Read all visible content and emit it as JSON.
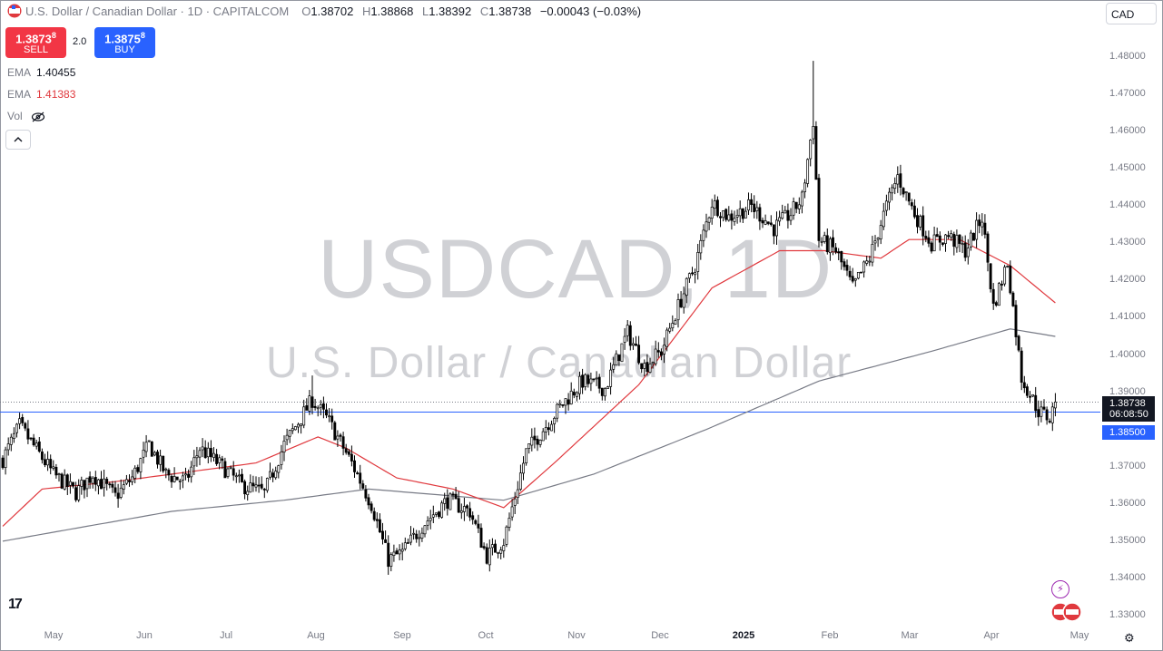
{
  "legend": {
    "title": "U.S. Dollar / Canadian Dollar · 1D · CAPITALCOM",
    "o_label": "O",
    "o_value": "1.38702",
    "h_label": "H",
    "h_value": "1.38868",
    "l_label": "L",
    "l_value": "1.38392",
    "c_label": "C",
    "c_value": "1.38738",
    "change": "−0.00043 (−0.03%)"
  },
  "trade": {
    "sell_price": "1.3873",
    "sell_price_sup": "8",
    "sell_label": "SELL",
    "spread": "2.0",
    "buy_price": "1.3875",
    "buy_price_sup": "8",
    "buy_label": "BUY"
  },
  "indicators": {
    "ema1_label": "EMA",
    "ema1_value": "1.40455",
    "ema1_color": "#787b86",
    "ema2_label": "EMA",
    "ema2_value": "1.41383",
    "ema2_color": "#e0393e",
    "vol_label": "Vol"
  },
  "currency": "CAD",
  "watermark": {
    "symbol": "USDCAD, 1D",
    "name": "U.S. Dollar / Canadian Dollar"
  },
  "price_labels": {
    "last_price": "1.38738",
    "countdown": "06:08:50",
    "last_color": "#131722",
    "line_price": "1.38500",
    "line_color": "#2962ff"
  },
  "icons": [
    "flag-icon",
    "hide-eye-icon",
    "chevron-up-icon",
    "tradingview-logo-icon",
    "lightning-icon",
    "currency-flags-icon",
    "gear-icon"
  ],
  "chart_data": {
    "type": "candlestick",
    "ylim": [
      1.325,
      1.485
    ],
    "y_ticks": [
      "1.48000",
      "1.47000",
      "1.46000",
      "1.45000",
      "1.44000",
      "1.43000",
      "1.42000",
      "1.41000",
      "1.40000",
      "1.39000",
      "1.37000",
      "1.36000",
      "1.35000",
      "1.34000",
      "1.33000"
    ],
    "x_ticks": [
      {
        "label": "May",
        "bold": false
      },
      {
        "label": "Jun",
        "bold": false
      },
      {
        "label": "Jul",
        "bold": false
      },
      {
        "label": "Aug",
        "bold": false
      },
      {
        "label": "Sep",
        "bold": false
      },
      {
        "label": "Oct",
        "bold": false
      },
      {
        "label": "Nov",
        "bold": false
      },
      {
        "label": "Dec",
        "bold": false
      },
      {
        "label": "2025",
        "bold": true
      },
      {
        "label": "Feb",
        "bold": false
      },
      {
        "label": "Mar",
        "bold": false
      },
      {
        "label": "Apr",
        "bold": false
      },
      {
        "label": "May",
        "bold": false
      }
    ],
    "close_anchors": [
      [
        0,
        1.372
      ],
      [
        6,
        1.381
      ],
      [
        18,
        1.368
      ],
      [
        26,
        1.363
      ],
      [
        32,
        1.368
      ],
      [
        40,
        1.362
      ],
      [
        46,
        1.367
      ],
      [
        52,
        1.376
      ],
      [
        58,
        1.368
      ],
      [
        65,
        1.366
      ],
      [
        70,
        1.375
      ],
      [
        78,
        1.37
      ],
      [
        85,
        1.365
      ],
      [
        93,
        1.363
      ],
      [
        100,
        1.376
      ],
      [
        110,
        1.388
      ],
      [
        116,
        1.382
      ],
      [
        124,
        1.371
      ],
      [
        131,
        1.36
      ],
      [
        137,
        1.345
      ],
      [
        142,
        1.347
      ],
      [
        150,
        1.355
      ],
      [
        158,
        1.361
      ],
      [
        166,
        1.358
      ],
      [
        172,
        1.346
      ],
      [
        178,
        1.35
      ],
      [
        186,
        1.374
      ],
      [
        192,
        1.38
      ],
      [
        198,
        1.386
      ],
      [
        206,
        1.393
      ],
      [
        214,
        1.391
      ],
      [
        222,
        1.406
      ],
      [
        228,
        1.397
      ],
      [
        234,
        1.401
      ],
      [
        240,
        1.413
      ],
      [
        246,
        1.424
      ],
      [
        252,
        1.441
      ],
      [
        258,
        1.437
      ],
      [
        266,
        1.44
      ],
      [
        274,
        1.434
      ],
      [
        280,
        1.438
      ],
      [
        284,
        1.442
      ],
      [
        288,
        1.463
      ],
      [
        290,
        1.431
      ],
      [
        296,
        1.428
      ],
      [
        302,
        1.418
      ],
      [
        308,
        1.426
      ],
      [
        314,
        1.44
      ],
      [
        318,
        1.448
      ],
      [
        324,
        1.438
      ],
      [
        330,
        1.43
      ],
      [
        336,
        1.432
      ],
      [
        342,
        1.428
      ],
      [
        348,
        1.437
      ],
      [
        352,
        1.413
      ],
      [
        357,
        1.425
      ],
      [
        362,
        1.394
      ],
      [
        368,
        1.385
      ],
      [
        372,
        1.383
      ],
      [
        374,
        1.387
      ]
    ],
    "ema_fast_anchors": [
      [
        0,
        1.354
      ],
      [
        14,
        1.364
      ],
      [
        40,
        1.366
      ],
      [
        70,
        1.369
      ],
      [
        90,
        1.371
      ],
      [
        112,
        1.378
      ],
      [
        122,
        1.375
      ],
      [
        140,
        1.367
      ],
      [
        160,
        1.364
      ],
      [
        178,
        1.359
      ],
      [
        196,
        1.371
      ],
      [
        226,
        1.392
      ],
      [
        252,
        1.418
      ],
      [
        276,
        1.428
      ],
      [
        292,
        1.428
      ],
      [
        312,
        1.426
      ],
      [
        322,
        1.431
      ],
      [
        340,
        1.431
      ],
      [
        358,
        1.424
      ],
      [
        374,
        1.414
      ]
    ],
    "ema_slow_anchors": [
      [
        0,
        1.35
      ],
      [
        60,
        1.358
      ],
      [
        100,
        1.361
      ],
      [
        130,
        1.364
      ],
      [
        178,
        1.361
      ],
      [
        210,
        1.368
      ],
      [
        250,
        1.38
      ],
      [
        290,
        1.393
      ],
      [
        330,
        1.401
      ],
      [
        358,
        1.407
      ],
      [
        374,
        1.405
      ]
    ],
    "last_close": 1.38738,
    "horizontal_line": 1.385
  }
}
